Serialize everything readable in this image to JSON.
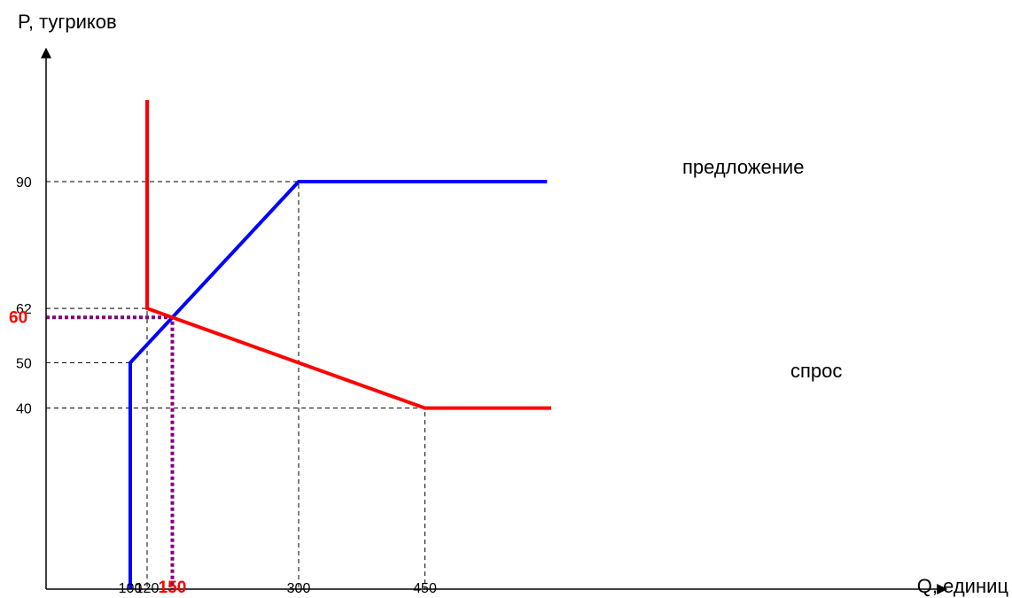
{
  "chart_data": {
    "type": "line",
    "xlabel": "Q, единиц",
    "ylabel": "P, тугриков",
    "xlim": [
      0,
      600
    ],
    "ylim": [
      0,
      112
    ],
    "grid": false,
    "legend": "none",
    "x_ticks": [
      {
        "value": 100,
        "label": "100",
        "highlight": false
      },
      {
        "value": 120,
        "label": "120",
        "highlight": false
      },
      {
        "value": 150,
        "label": "150",
        "highlight": true
      },
      {
        "value": 300,
        "label": "300",
        "highlight": false
      },
      {
        "value": 450,
        "label": "450",
        "highlight": false
      }
    ],
    "y_ticks": [
      {
        "value": 90,
        "label": "90",
        "highlight": false
      },
      {
        "value": 62,
        "label": "62",
        "highlight": false
      },
      {
        "value": 60,
        "label": "60",
        "highlight": true
      },
      {
        "value": 50,
        "label": "50",
        "highlight": false
      },
      {
        "value": 40,
        "label": "40",
        "highlight": false
      }
    ],
    "series": [
      {
        "name": "предложение",
        "color": "#0000ff",
        "points": [
          [
            100,
            0
          ],
          [
            100,
            50
          ],
          [
            300,
            90
          ],
          [
            595,
            90
          ]
        ]
      },
      {
        "name": "спрос",
        "color": "#ff0000",
        "points": [
          [
            120,
            108
          ],
          [
            120,
            62
          ],
          [
            450,
            40
          ],
          [
            600,
            40
          ]
        ]
      }
    ],
    "reference_lines": [
      {
        "points": [
          [
            0,
            90
          ],
          [
            300,
            90
          ],
          [
            300,
            0
          ]
        ],
        "style": "dashed",
        "color": "#000000"
      },
      {
        "points": [
          [
            0,
            62
          ],
          [
            120,
            62
          ],
          [
            120,
            0
          ]
        ],
        "style": "dashed",
        "color": "#000000"
      },
      {
        "points": [
          [
            0,
            50
          ],
          [
            100,
            50
          ]
        ],
        "style": "dashed",
        "color": "#000000"
      },
      {
        "points": [
          [
            0,
            40
          ],
          [
            450,
            40
          ],
          [
            450,
            0
          ]
        ],
        "style": "dashed",
        "color": "#000000"
      },
      {
        "points": [
          [
            0,
            60
          ],
          [
            150,
            60
          ],
          [
            150,
            0
          ]
        ],
        "style": "dotted",
        "color": "#800080"
      }
    ]
  }
}
